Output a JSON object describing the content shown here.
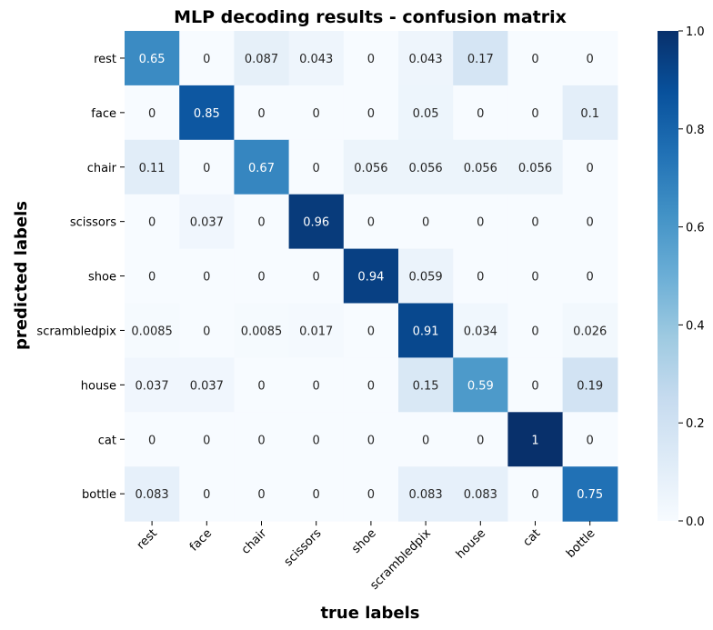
{
  "chart_data": {
    "type": "heatmap",
    "title": "MLP decoding results - confusion matrix",
    "xlabel": "true labels",
    "ylabel": "predicted labels",
    "x_categories": [
      "rest",
      "face",
      "chair",
      "scissors",
      "shoe",
      "scrambledpix",
      "house",
      "cat",
      "bottle"
    ],
    "y_categories": [
      "rest",
      "face",
      "chair",
      "scissors",
      "shoe",
      "scrambledpix",
      "house",
      "cat",
      "bottle"
    ],
    "values": [
      [
        "0.65",
        "0",
        "0.087",
        "0.043",
        "0",
        "0.043",
        "0.17",
        "0",
        "0"
      ],
      [
        "0",
        "0.85",
        "0",
        "0",
        "0",
        "0.05",
        "0",
        "0",
        "0.1"
      ],
      [
        "0.11",
        "0",
        "0.67",
        "0",
        "0.056",
        "0.056",
        "0.056",
        "0.056",
        "0"
      ],
      [
        "0",
        "0.037",
        "0",
        "0.96",
        "0",
        "0",
        "0",
        "0",
        "0"
      ],
      [
        "0",
        "0",
        "0",
        "0",
        "0.94",
        "0.059",
        "0",
        "0",
        "0"
      ],
      [
        "0.0085",
        "0",
        "0.0085",
        "0.017",
        "0",
        "0.91",
        "0.034",
        "0",
        "0.026"
      ],
      [
        "0.037",
        "0.037",
        "0",
        "0",
        "0",
        "0.15",
        "0.59",
        "0",
        "0.19"
      ],
      [
        "0",
        "0",
        "0",
        "0",
        "0",
        "0",
        "0",
        "1",
        "0"
      ],
      [
        "0.083",
        "0",
        "0",
        "0",
        "0",
        "0.083",
        "0.083",
        "0",
        "0.75"
      ]
    ],
    "colorbar": {
      "range": [
        0.0,
        1.0
      ],
      "ticks": [
        "0.0",
        "0.2",
        "0.4",
        "0.6",
        "0.8",
        "1.0"
      ],
      "colormap": "Blues"
    },
    "grid": false
  }
}
